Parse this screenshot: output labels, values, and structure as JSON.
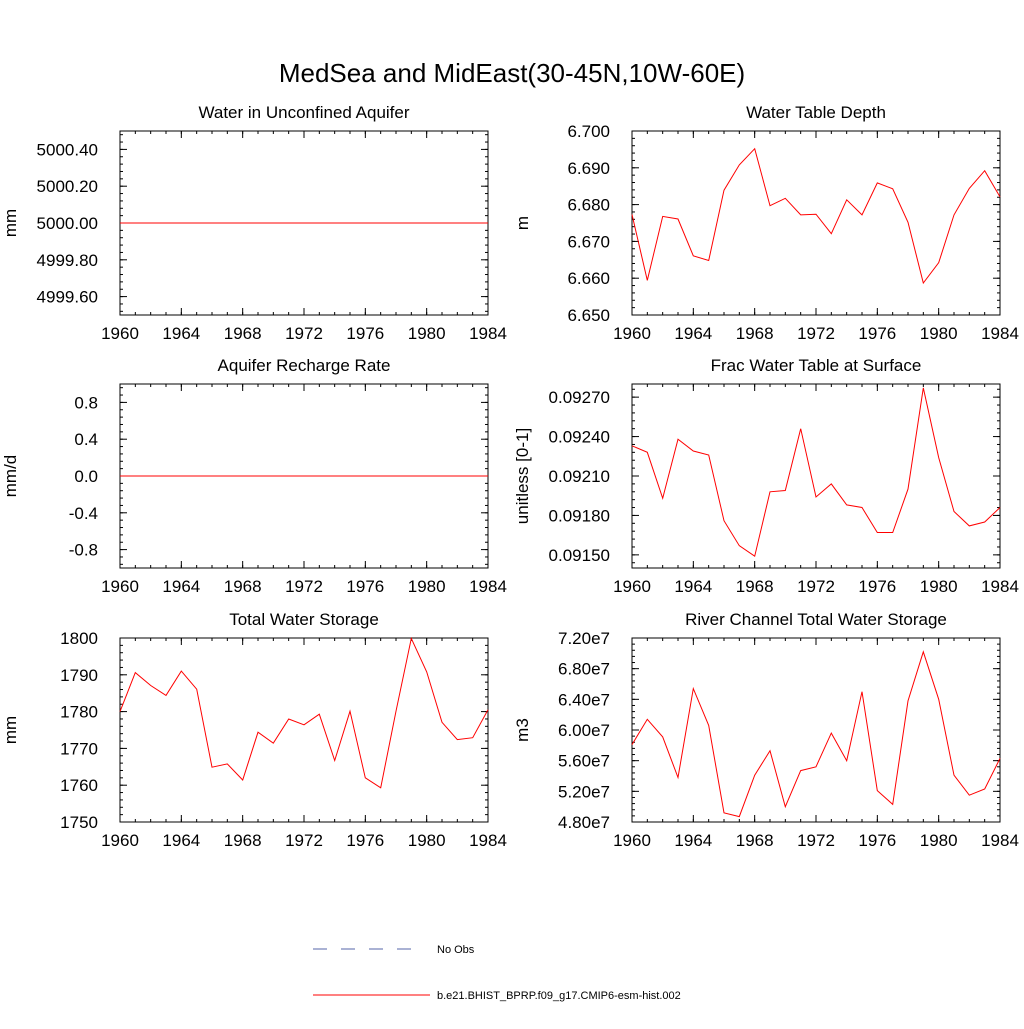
{
  "title": "MedSea and MidEast(30-45N,10W-60E)",
  "legend": {
    "items": [
      {
        "label": "No Obs",
        "style": "dashed",
        "color": "#5566aa"
      },
      {
        "label": "b.e21.BHIST_BPRP.f09_g17.CMIP6-esm-hist.002",
        "style": "solid",
        "color": "#ff0000"
      }
    ]
  },
  "colors": {
    "series": "#ff0000",
    "axis": "#000000"
  },
  "chart_data": [
    {
      "type": "line",
      "title": "Water in Unconfined Aquifer",
      "ylabel": "mm",
      "xlabel": "",
      "xlim": [
        1960,
        1984
      ],
      "ylim": [
        4999.5,
        5000.5
      ],
      "xticks": [
        1960,
        1964,
        1968,
        1972,
        1976,
        1980,
        1984
      ],
      "yticks": [
        4999.6,
        4999.8,
        5000.0,
        5000.2,
        5000.4
      ],
      "ytick_labels": [
        "4999.60",
        "4999.80",
        "5000.00",
        "5000.20",
        "5000.40"
      ],
      "x": [
        1960,
        1961,
        1962,
        1963,
        1964,
        1965,
        1966,
        1967,
        1968,
        1969,
        1970,
        1971,
        1972,
        1973,
        1974,
        1975,
        1976,
        1977,
        1978,
        1979,
        1980,
        1981,
        1982,
        1983,
        1984
      ],
      "series": [
        {
          "values": [
            5000,
            5000,
            5000,
            5000,
            5000,
            5000,
            5000,
            5000,
            5000,
            5000,
            5000,
            5000,
            5000,
            5000,
            5000,
            5000,
            5000,
            5000,
            5000,
            5000,
            5000,
            5000,
            5000,
            5000,
            5000
          ]
        }
      ]
    },
    {
      "type": "line",
      "title": "Water Table Depth",
      "ylabel": "m",
      "xlabel": "",
      "xlim": [
        1960,
        1984
      ],
      "ylim": [
        6.65,
        6.7
      ],
      "xticks": [
        1960,
        1964,
        1968,
        1972,
        1976,
        1980,
        1984
      ],
      "yticks": [
        6.65,
        6.66,
        6.67,
        6.68,
        6.69,
        6.7
      ],
      "ytick_labels": [
        "6.650",
        "6.660",
        "6.670",
        "6.680",
        "6.690",
        "6.700"
      ],
      "x": [
        1960,
        1961,
        1962,
        1963,
        1964,
        1965,
        1966,
        1967,
        1968,
        1969,
        1970,
        1971,
        1972,
        1973,
        1974,
        1975,
        1976,
        1977,
        1978,
        1979,
        1980,
        1981,
        1982,
        1983,
        1984
      ],
      "series": [
        {
          "values": [
            6.6773,
            6.6594,
            6.6768,
            6.6761,
            6.6661,
            6.6648,
            6.6839,
            6.6908,
            6.6952,
            6.6797,
            6.6817,
            6.6772,
            6.6774,
            6.6721,
            6.6813,
            6.6772,
            6.6859,
            6.6843,
            6.6752,
            6.6587,
            6.6642,
            6.6772,
            6.6844,
            6.6892,
            6.6821
          ]
        }
      ]
    },
    {
      "type": "line",
      "title": "Aquifer Recharge Rate",
      "ylabel": "mm/d",
      "xlabel": "",
      "xlim": [
        1960,
        1984
      ],
      "ylim": [
        -1.0,
        1.0
      ],
      "xticks": [
        1960,
        1964,
        1968,
        1972,
        1976,
        1980,
        1984
      ],
      "yticks": [
        -0.8,
        -0.4,
        0.0,
        0.4,
        0.8
      ],
      "ytick_labels": [
        "-0.8",
        "-0.4",
        "0.0",
        "0.4",
        "0.8"
      ],
      "x": [
        1960,
        1961,
        1962,
        1963,
        1964,
        1965,
        1966,
        1967,
        1968,
        1969,
        1970,
        1971,
        1972,
        1973,
        1974,
        1975,
        1976,
        1977,
        1978,
        1979,
        1980,
        1981,
        1982,
        1983,
        1984
      ],
      "series": [
        {
          "values": [
            0,
            0,
            0,
            0,
            0,
            0,
            0,
            0,
            0,
            0,
            0,
            0,
            0,
            0,
            0,
            0,
            0,
            0,
            0,
            0,
            0,
            0,
            0,
            0,
            0
          ]
        }
      ]
    },
    {
      "type": "line",
      "title": "Frac Water Table at Surface",
      "ylabel": "unitless [0-1]",
      "xlabel": "",
      "xlim": [
        1960,
        1984
      ],
      "ylim": [
        0.0914,
        0.0928
      ],
      "xticks": [
        1960,
        1964,
        1968,
        1972,
        1976,
        1980,
        1984
      ],
      "yticks": [
        0.0915,
        0.0918,
        0.0921,
        0.0924,
        0.0927
      ],
      "ytick_labels": [
        "0.09150",
        "0.09180",
        "0.09210",
        "0.09240",
        "0.09270"
      ],
      "x": [
        1960,
        1961,
        1962,
        1963,
        1964,
        1965,
        1966,
        1967,
        1968,
        1969,
        1970,
        1971,
        1972,
        1973,
        1974,
        1975,
        1976,
        1977,
        1978,
        1979,
        1980,
        1981,
        1982,
        1983,
        1984
      ],
      "series": [
        {
          "values": [
            0.09233,
            0.09228,
            0.09193,
            0.09238,
            0.09229,
            0.09226,
            0.09176,
            0.09157,
            0.09149,
            0.09198,
            0.09199,
            0.09246,
            0.09194,
            0.09204,
            0.09188,
            0.09186,
            0.09167,
            0.09167,
            0.092,
            0.09277,
            0.09224,
            0.09183,
            0.09172,
            0.09175,
            0.09186
          ]
        }
      ]
    },
    {
      "type": "line",
      "title": "Total Water Storage",
      "ylabel": "mm",
      "xlabel": "",
      "xlim": [
        1960,
        1984
      ],
      "ylim": [
        1750,
        1800
      ],
      "xticks": [
        1960,
        1964,
        1968,
        1972,
        1976,
        1980,
        1984
      ],
      "yticks": [
        1750,
        1760,
        1770,
        1780,
        1790,
        1800
      ],
      "ytick_labels": [
        "1750",
        "1760",
        "1770",
        "1780",
        "1790",
        "1800"
      ],
      "x": [
        1960,
        1961,
        1962,
        1963,
        1964,
        1965,
        1966,
        1967,
        1968,
        1969,
        1970,
        1971,
        1972,
        1973,
        1974,
        1975,
        1976,
        1977,
        1978,
        1979,
        1980,
        1981,
        1982,
        1983,
        1984
      ],
      "series": [
        {
          "values": [
            1780.0,
            1790.6,
            1787.1,
            1784.4,
            1791.0,
            1786.1,
            1764.9,
            1765.8,
            1761.4,
            1774.4,
            1771.4,
            1778.0,
            1776.4,
            1779.3,
            1766.7,
            1780.1,
            1762.0,
            1759.3,
            1780.1,
            1799.9,
            1790.8,
            1777.1,
            1772.4,
            1772.9,
            1780.5
          ]
        }
      ]
    },
    {
      "type": "line",
      "title": "River Channel Total Water Storage",
      "ylabel": "m3",
      "xlabel": "",
      "xlim": [
        1960,
        1984
      ],
      "ylim": [
        48000000.0,
        72000000.0
      ],
      "xticks": [
        1960,
        1964,
        1968,
        1972,
        1976,
        1980,
        1984
      ],
      "yticks": [
        48000000.0,
        52000000.0,
        56000000.0,
        60000000.0,
        64000000.0,
        68000000.0,
        72000000.0
      ],
      "ytick_labels": [
        "4.80e7",
        "5.20e7",
        "5.60e7",
        "6.00e7",
        "6.40e7",
        "6.80e7",
        "7.20e7"
      ],
      "x": [
        1960,
        1961,
        1962,
        1963,
        1964,
        1965,
        1966,
        1967,
        1968,
        1969,
        1970,
        1971,
        1972,
        1973,
        1974,
        1975,
        1976,
        1977,
        1978,
        1979,
        1980,
        1981,
        1982,
        1983,
        1984
      ],
      "series": [
        {
          "values": [
            58100000,
            61400000,
            59100000,
            53800000,
            65400000,
            60600000,
            49200000,
            48700000,
            54100000,
            57300000,
            50000000,
            54700000,
            55200000,
            59600000,
            56000000,
            65000000,
            52100000,
            50300000,
            63800000,
            70200000,
            64000000,
            54100000,
            51500000,
            52300000,
            56300000
          ]
        }
      ]
    }
  ]
}
